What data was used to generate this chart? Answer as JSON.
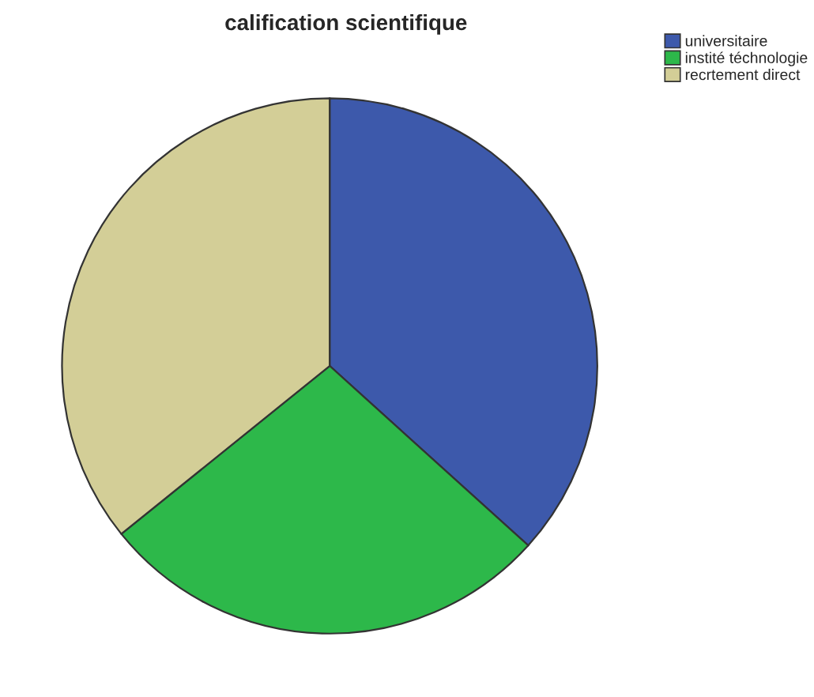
{
  "chart_data": {
    "type": "pie",
    "title": "calification scientifique",
    "categories": [
      "universitaire",
      "instité téchnologie",
      "recrtement direct"
    ],
    "values": [
      36.7,
      27.5,
      35.8
    ],
    "colors": [
      "#3d59ab",
      "#2db84a",
      "#d3ce97"
    ],
    "legend": "top right"
  }
}
